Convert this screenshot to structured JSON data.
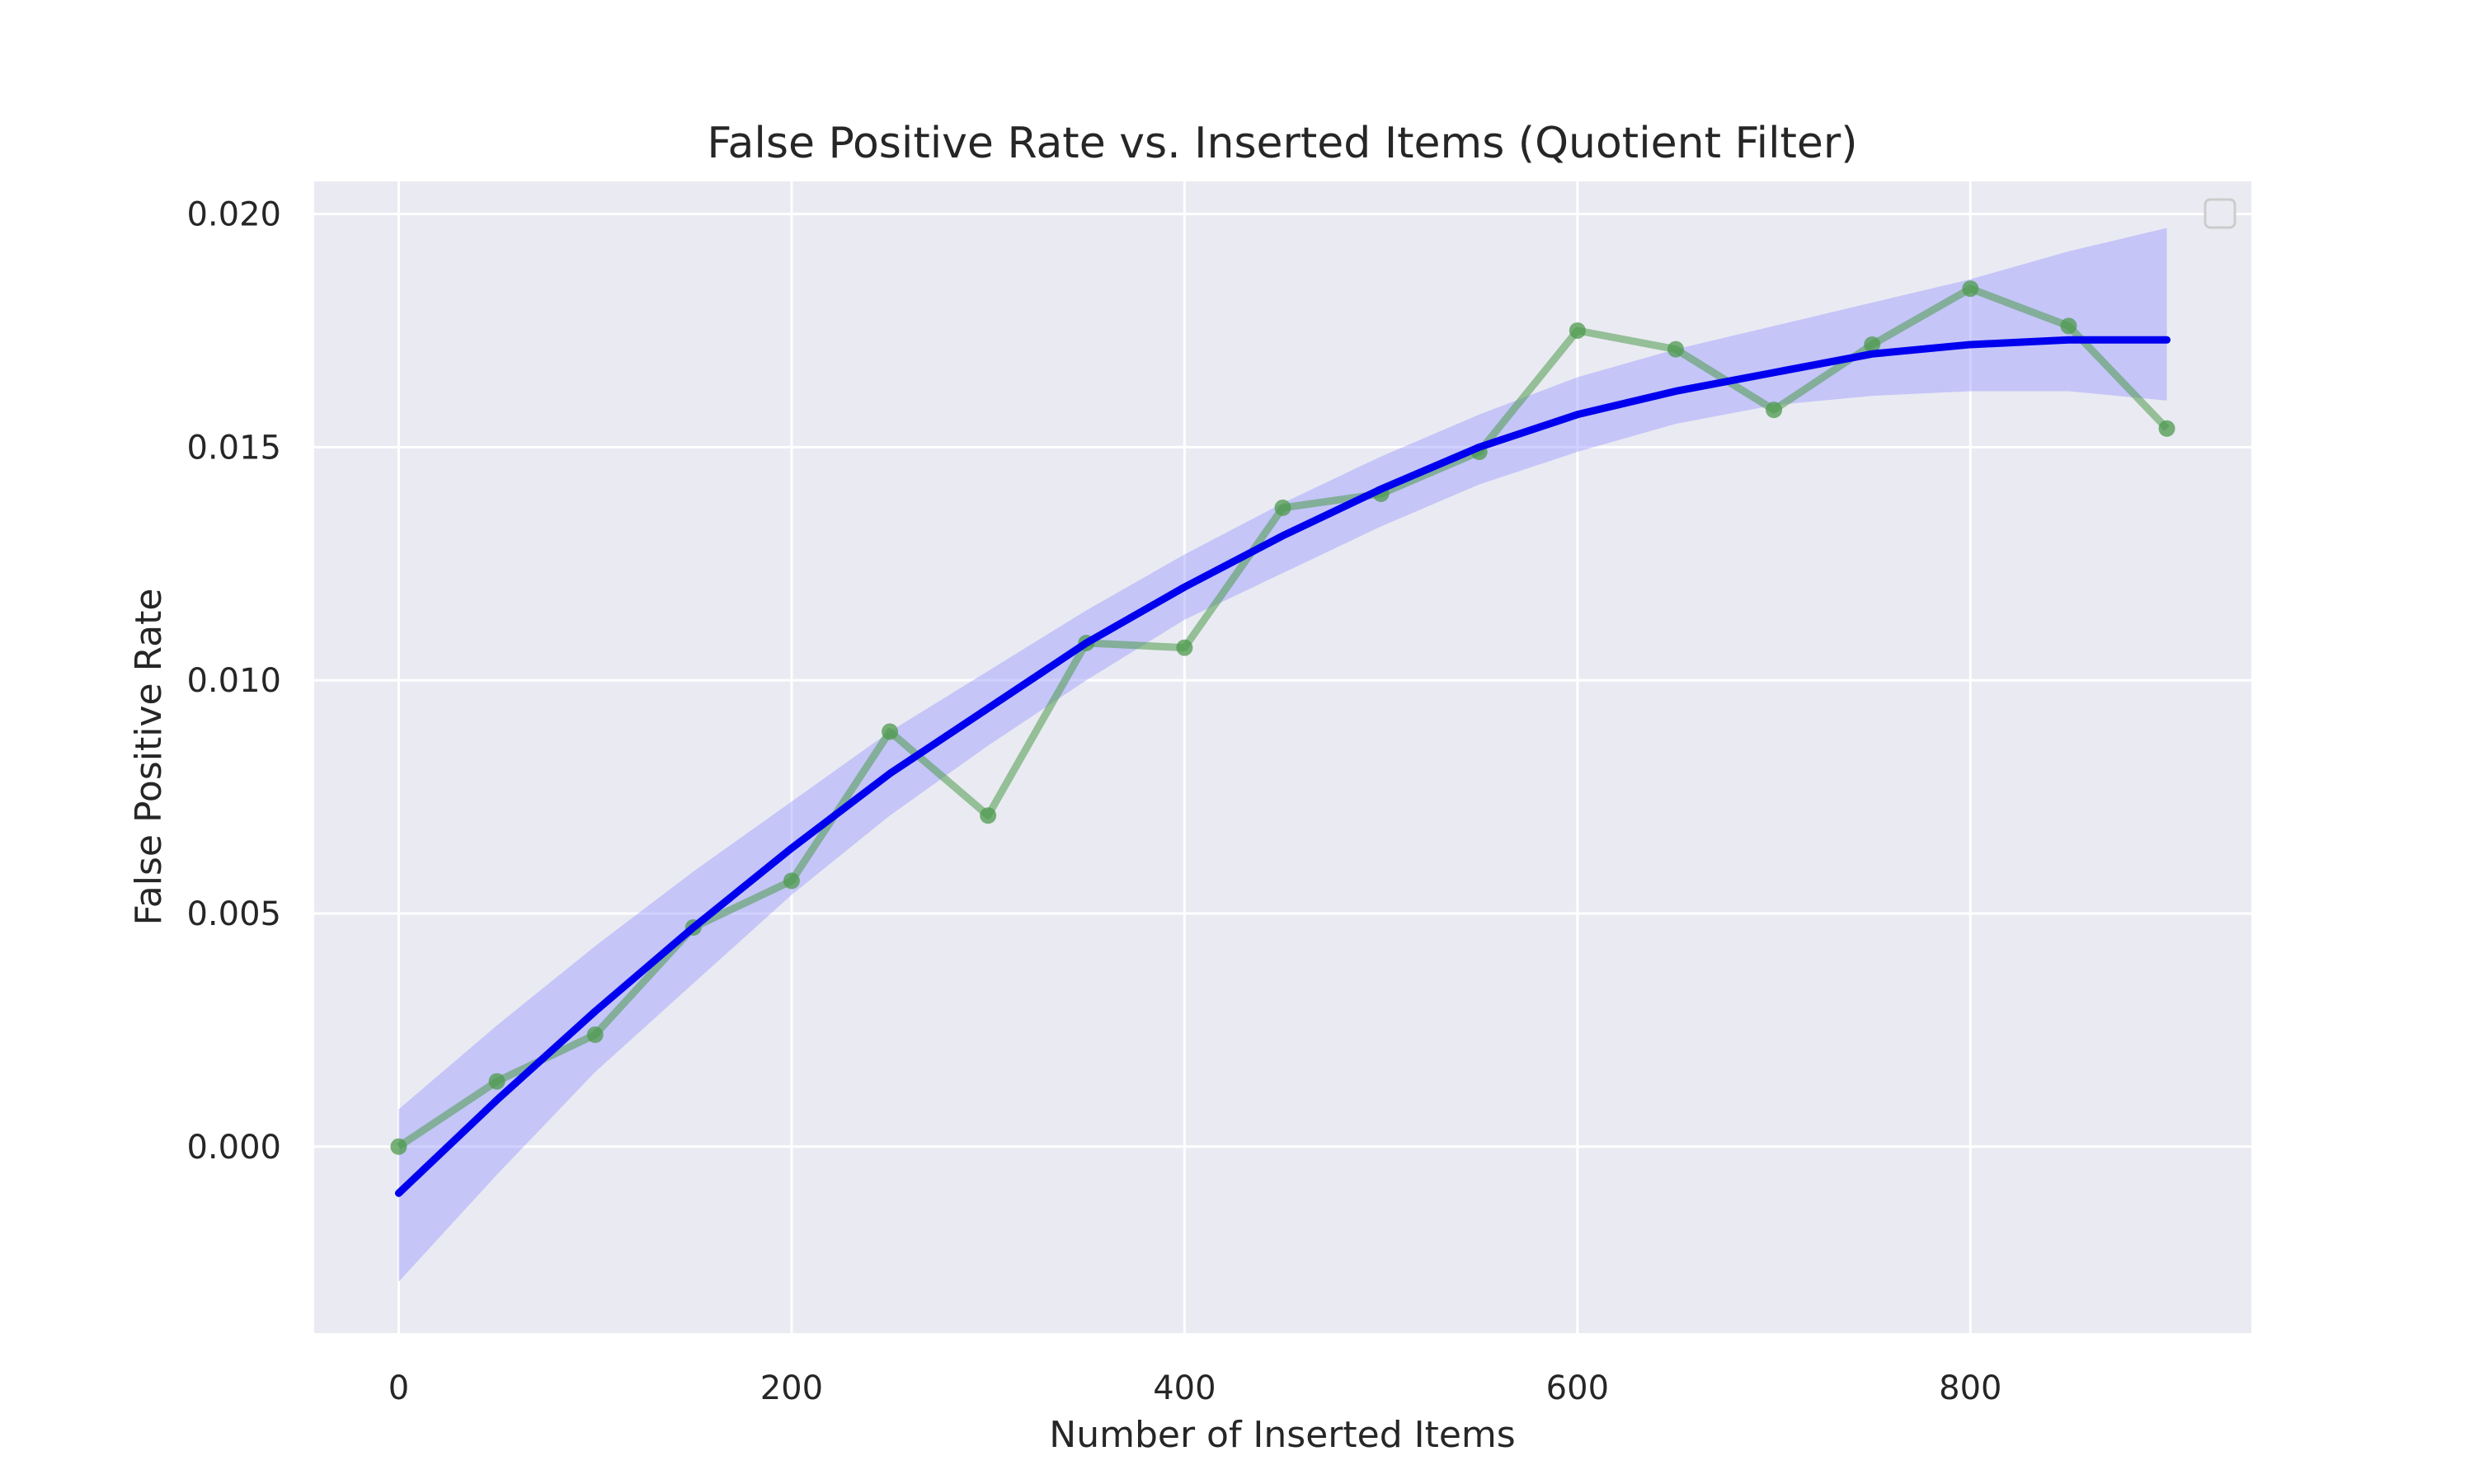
{
  "chart_data": {
    "type": "line",
    "title": "False Positive Rate vs. Inserted Items (Quotient Filter)",
    "xlabel": "Number of Inserted Items",
    "ylabel": "False Positive Rate",
    "xlim": [
      -43,
      943
    ],
    "ylim": [
      -0.004,
      0.0207
    ],
    "x_ticks": [
      0,
      200,
      400,
      600,
      800
    ],
    "x_tick_labels": [
      "0",
      "200",
      "400",
      "600",
      "800"
    ],
    "y_ticks": [
      0.0,
      0.005,
      0.01,
      0.015,
      0.02
    ],
    "y_tick_labels": [
      "0.000",
      "0.005",
      "0.010",
      "0.015",
      "0.020"
    ],
    "grid": true,
    "legend": "top-right (empty)",
    "x": [
      0,
      50,
      100,
      150,
      200,
      250,
      300,
      350,
      400,
      450,
      500,
      550,
      600,
      650,
      700,
      750,
      800,
      850,
      900
    ],
    "series": [
      {
        "kind": "line-with-markers",
        "color": "#4c9a4c",
        "values": [
          0.0,
          0.0014,
          0.0024,
          0.0047,
          0.0057,
          0.0089,
          0.0071,
          0.0108,
          0.0107,
          0.0137,
          0.014,
          0.0149,
          0.0175,
          0.0171,
          0.0158,
          0.0172,
          0.0184,
          0.0176,
          0.0154
        ]
      },
      {
        "kind": "regression-fit",
        "color": "#0000ee",
        "band_color": "#9999ff",
        "fit_x": [
          0,
          50,
          100,
          150,
          200,
          250,
          300,
          350,
          400,
          450,
          500,
          550,
          600,
          650,
          700,
          750,
          800,
          850,
          900
        ],
        "fit_y": [
          -0.001,
          0.001,
          0.0029,
          0.0047,
          0.0064,
          0.008,
          0.0094,
          0.0108,
          0.012,
          0.0131,
          0.0141,
          0.015,
          0.0157,
          0.0162,
          0.0166,
          0.017,
          0.0172,
          0.0173,
          0.0173
        ],
        "band_lower": [
          -0.0029,
          -0.0006,
          0.0016,
          0.0035,
          0.0054,
          0.0071,
          0.0086,
          0.01,
          0.0113,
          0.0123,
          0.0133,
          0.0142,
          0.0149,
          0.0155,
          0.0159,
          0.0161,
          0.0162,
          0.0162,
          0.016
        ],
        "band_upper": [
          0.0008,
          0.0026,
          0.0043,
          0.0059,
          0.0074,
          0.0089,
          0.0102,
          0.0115,
          0.0127,
          0.0138,
          0.0148,
          0.0157,
          0.0165,
          0.0171,
          0.0176,
          0.0181,
          0.0186,
          0.0192,
          0.0197
        ]
      }
    ]
  },
  "colors": {
    "plot_background": "#eaeaf2",
    "grid": "#ffffff",
    "text": "#262626"
  }
}
